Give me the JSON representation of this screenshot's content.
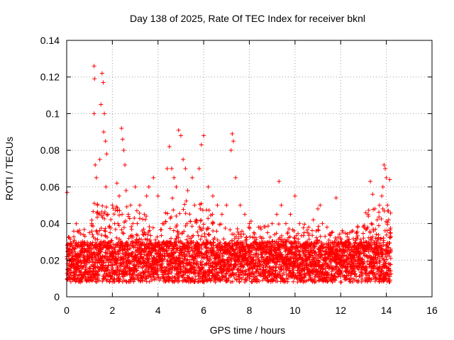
{
  "chart_data": {
    "type": "scatter",
    "title": "Day 138 of 2025, Rate Of TEC Index for receiver bknl",
    "xlabel": "GPS time / hours",
    "ylabel": "ROTI / TECUs",
    "xlim": [
      0,
      16
    ],
    "ylim": [
      0,
      0.14
    ],
    "x_ticks": [
      0,
      2,
      4,
      6,
      8,
      10,
      12,
      14,
      16
    ],
    "y_ticks": [
      0,
      0.02,
      0.04,
      0.06,
      0.08,
      0.1,
      0.12,
      0.14
    ],
    "x_tick_labels": [
      "0",
      "2",
      "4",
      "6",
      "8",
      "10",
      "12",
      "14",
      "16"
    ],
    "y_tick_labels": [
      "0",
      "0.02",
      "0.04",
      "0.06",
      "0.08",
      "0.1",
      "0.12",
      "0.14"
    ],
    "grid": true,
    "marker": "+",
    "color": "#ff0000",
    "series": [
      {
        "name": "ROTI",
        "x": [
          0.02,
          0.05,
          0.1,
          0.15,
          0.2,
          0.3,
          0.4,
          0.5,
          0.6,
          0.7,
          0.8,
          0.9,
          1.0,
          1.1,
          1.2,
          1.2,
          1.22,
          1.25,
          1.3,
          1.35,
          1.4,
          1.45,
          1.5,
          1.55,
          1.6,
          1.62,
          1.65,
          1.7,
          1.72,
          1.75,
          1.8,
          1.9,
          2.0,
          2.1,
          2.2,
          2.3,
          2.4,
          2.45,
          2.5,
          2.55,
          2.6,
          2.7,
          2.8,
          2.9,
          3.0,
          3.2,
          3.4,
          3.5,
          3.6,
          3.8,
          4.0,
          4.2,
          4.4,
          4.5,
          4.6,
          4.7,
          4.8,
          4.9,
          5.0,
          5.1,
          5.2,
          5.3,
          5.5,
          5.6,
          5.8,
          5.9,
          6.0,
          6.2,
          6.4,
          6.6,
          6.8,
          7.0,
          7.2,
          7.25,
          7.3,
          7.4,
          7.6,
          7.8,
          8.0,
          8.2,
          8.4,
          8.6,
          8.8,
          9.0,
          9.2,
          9.3,
          9.4,
          9.6,
          9.8,
          10.0,
          10.2,
          10.4,
          10.6,
          10.8,
          11.0,
          11.1,
          11.2,
          11.4,
          11.6,
          11.8,
          12.0,
          12.2,
          12.4,
          12.6,
          12.8,
          13.0,
          13.1,
          13.2,
          13.3,
          13.4,
          13.5,
          13.6,
          13.7,
          13.8,
          13.85,
          13.9,
          13.95,
          14.0,
          14.05,
          14.1,
          14.15
        ],
        "y": [
          0.057,
          0.025,
          0.015,
          0.02,
          0.018,
          0.03,
          0.012,
          0.022,
          0.028,
          0.016,
          0.033,
          0.02,
          0.035,
          0.04,
          0.1,
          0.126,
          0.119,
          0.072,
          0.065,
          0.05,
          0.045,
          0.075,
          0.105,
          0.122,
          0.117,
          0.09,
          0.1,
          0.085,
          0.06,
          0.078,
          0.045,
          0.035,
          0.05,
          0.04,
          0.062,
          0.055,
          0.092,
          0.086,
          0.08,
          0.072,
          0.058,
          0.045,
          0.05,
          0.04,
          0.06,
          0.05,
          0.045,
          0.055,
          0.06,
          0.065,
          0.055,
          0.04,
          0.07,
          0.082,
          0.07,
          0.065,
          0.06,
          0.091,
          0.088,
          0.075,
          0.07,
          0.058,
          0.065,
          0.05,
          0.07,
          0.083,
          0.088,
          0.06,
          0.055,
          0.05,
          0.045,
          0.05,
          0.08,
          0.089,
          0.085,
          0.065,
          0.05,
          0.045,
          0.04,
          0.035,
          0.038,
          0.032,
          0.035,
          0.04,
          0.045,
          0.063,
          0.05,
          0.04,
          0.045,
          0.055,
          0.04,
          0.035,
          0.038,
          0.042,
          0.048,
          0.05,
          0.04,
          0.038,
          0.035,
          0.054,
          0.032,
          0.03,
          0.035,
          0.028,
          0.025,
          0.032,
          0.03,
          0.045,
          0.063,
          0.056,
          0.048,
          0.042,
          0.05,
          0.055,
          0.06,
          0.072,
          0.07,
          0.065,
          0.05,
          0.042,
          0.064
        ]
      }
    ]
  }
}
